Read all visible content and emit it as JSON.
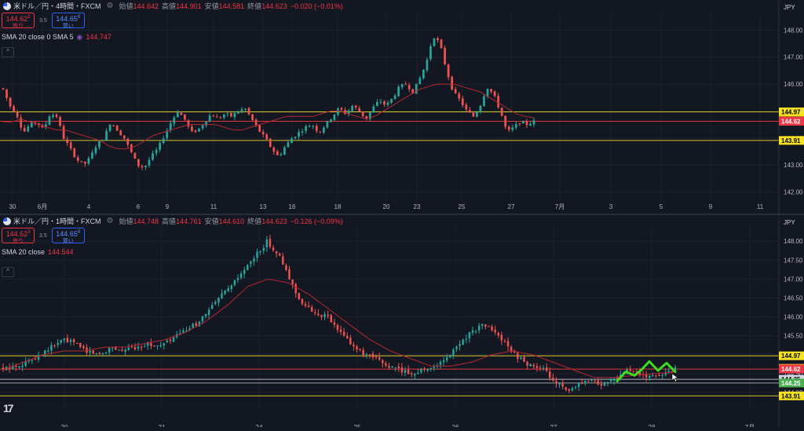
{
  "colors": {
    "up": "#26a69a",
    "down": "#ef5350",
    "sma": "#b22833",
    "bg": "#131722",
    "grid": "#1e222d",
    "line_yellow": "#d7c62a",
    "line_red": "#d83a3a",
    "line_white": "#b2b5be",
    "line_green": "#4caf50",
    "drawing": "#3ddc1f"
  },
  "top": {
    "symbol": "米ドル／円・4時間・FXCM",
    "ohlc": [
      {
        "k": "始値",
        "v": "144.642"
      },
      {
        "k": "高値",
        "v": "144.901"
      },
      {
        "k": "安値",
        "v": "144.581"
      },
      {
        "k": "終値",
        "v": "144.623"
      },
      {
        "k": "",
        "v": "−0.020 (−0.01%)"
      }
    ],
    "sell_price": "144.62",
    "sell_sup": "3",
    "sell_label": "売り",
    "spread": "3.5",
    "buy_price": "144.65",
    "buy_sup": "8",
    "buy_label": "買い",
    "sma_label": "SMA 20 close 0 SMA 5",
    "sma_value": "144.747",
    "collapse": "^",
    "currency": "JPY"
  },
  "bot": {
    "symbol": "米ドル／円・1時間・FXCM",
    "ohlc": [
      {
        "k": "始値",
        "v": "144.748"
      },
      {
        "k": "高値",
        "v": "144.761"
      },
      {
        "k": "安値",
        "v": "144.610"
      },
      {
        "k": "終値",
        "v": "144.623"
      },
      {
        "k": "",
        "v": "−0.126 (−0.09%)"
      }
    ],
    "sell_price": "144.62",
    "sell_sup": "3",
    "sell_label": "売り",
    "spread": "3.5",
    "buy_price": "144.65",
    "buy_sup": "8",
    "buy_label": "買い",
    "sma_label": "SMA 20 close",
    "sma_value": "144.544",
    "collapse": "^",
    "currency": "JPY"
  },
  "logo": "17",
  "chart_data": [
    {
      "type": "candlestick",
      "title": "米ドル／円・4時間・FXCM",
      "ylim": [
        141.9,
        148.3
      ],
      "yticks": [
        "148.00",
        "147.00",
        "146.00",
        "145.00",
        "144.00",
        "143.00",
        "142.00"
      ],
      "xticks": [
        "30",
        "6月",
        "4",
        "6",
        "9",
        "11",
        "13",
        "16",
        "18",
        "20",
        "23",
        "25",
        "27",
        "7月",
        "3",
        "5",
        "9",
        "11"
      ],
      "close_path": [
        145.8,
        145.2,
        144.9,
        144.2,
        144.5,
        144.6,
        144.3,
        144.9,
        144.8,
        144.0,
        143.6,
        143.2,
        143.0,
        143.3,
        143.8,
        144.0,
        144.6,
        144.3,
        144.0,
        143.5,
        143.0,
        142.9,
        143.3,
        143.6,
        144.1,
        144.6,
        145.0,
        144.7,
        144.2,
        144.3,
        144.6,
        144.9,
        144.7,
        144.9,
        144.8,
        145.0,
        145.1,
        144.7,
        144.3,
        144.0,
        143.6,
        143.3,
        143.7,
        144.0,
        144.2,
        144.4,
        144.5,
        144.2,
        144.5,
        144.8,
        145.1,
        144.9,
        145.2,
        145.0,
        144.7,
        145.1,
        145.4,
        145.2,
        145.5,
        145.9,
        146.0,
        145.7,
        146.2,
        146.8,
        147.8,
        147.5,
        146.5,
        145.7,
        145.4,
        145.0,
        144.8,
        145.2,
        145.9,
        145.6,
        145.0,
        144.2,
        144.4,
        144.6,
        144.5,
        144.62
      ],
      "sma_path": [
        144.6,
        144.6,
        144.7,
        144.6,
        144.5,
        144.4,
        144.3,
        144.3,
        144.2,
        144.1,
        144.0,
        143.9,
        143.7,
        143.6,
        143.6,
        143.7,
        143.9,
        144.1,
        144.2,
        144.3,
        144.4,
        144.5,
        144.5,
        144.5,
        144.5,
        144.4,
        144.3,
        144.3,
        144.4,
        144.5,
        144.6,
        144.7,
        144.8,
        144.8,
        144.8,
        144.8,
        144.9,
        145.0,
        145.0,
        144.9,
        144.8,
        144.7,
        144.8,
        145.0,
        145.2,
        145.4,
        145.6,
        145.8,
        145.9,
        146.0,
        146.0,
        146.0,
        145.9,
        145.8,
        145.7,
        145.5,
        145.3,
        145.1,
        144.9,
        144.8,
        144.75
      ],
      "hlines": [
        {
          "price": 144.97,
          "label": "144.97",
          "color": "yellow"
        },
        {
          "price": 144.64,
          "label": "144.64",
          "color": "orange"
        },
        {
          "price": 144.62,
          "label": "144.62",
          "color": "red"
        },
        {
          "price": 143.91,
          "label": "143.91",
          "color": "yellow"
        }
      ]
    },
    {
      "type": "candlestick",
      "title": "米ドル／円・1時間・FXCM",
      "ylim": [
        143.75,
        148.15
      ],
      "yticks": [
        "148.00",
        "147.50",
        "147.00",
        "146.50",
        "146.00",
        "145.50",
        "145.00",
        "144.50",
        "144.00"
      ],
      "xticks": [
        "20",
        "21",
        "24",
        "25",
        "26",
        "27",
        "28",
        "7月"
      ],
      "close_path": [
        144.6,
        144.7,
        144.8,
        145.0,
        145.2,
        145.4,
        145.3,
        145.1,
        145.0,
        145.2,
        145.1,
        145.2,
        145.3,
        145.2,
        145.4,
        145.6,
        145.8,
        146.1,
        146.5,
        146.8,
        147.2,
        147.6,
        148.0,
        147.6,
        146.9,
        146.3,
        146.1,
        146.0,
        145.6,
        145.3,
        145.0,
        144.9,
        144.7,
        144.6,
        144.5,
        144.6,
        144.7,
        144.9,
        145.3,
        145.6,
        145.8,
        145.6,
        145.2,
        144.9,
        144.7,
        144.6,
        144.3,
        144.0,
        144.2,
        144.3,
        144.2,
        144.4,
        144.6,
        144.5,
        144.4,
        144.5,
        144.62
      ],
      "sma_path": [
        144.6,
        144.8,
        145.0,
        145.1,
        145.1,
        145.2,
        145.2,
        145.3,
        145.4,
        145.6,
        145.9,
        146.3,
        146.8,
        147.0,
        146.9,
        146.6,
        146.2,
        145.8,
        145.4,
        145.1,
        144.9,
        144.7,
        144.7,
        144.8,
        145.0,
        145.1,
        145.0,
        144.8,
        144.6,
        144.4,
        144.4,
        144.45,
        144.5,
        144.54
      ],
      "hlines": [
        {
          "price": 144.97,
          "label": "144.97",
          "color": "yellow"
        },
        {
          "price": 144.64,
          "label": "144.64",
          "color": "orange"
        },
        {
          "price": 144.62,
          "label": "144.62",
          "color": "red"
        },
        {
          "price": 144.35,
          "label": "144.35",
          "color": "white"
        },
        {
          "price": 144.25,
          "label": "144.25",
          "color": "green"
        },
        {
          "price": 143.91,
          "label": "143.91",
          "color": "yellow"
        }
      ]
    }
  ]
}
